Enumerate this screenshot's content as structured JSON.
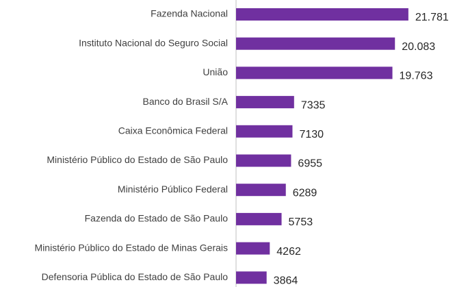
{
  "chart_data": {
    "type": "bar",
    "orientation": "horizontal",
    "categories": [
      "Fazenda Nacional",
      "Instituto Nacional do Seguro Social",
      "União",
      "Banco do Brasil S/A",
      "Caixa Econômica Federal",
      "Ministério Público do Estado de São Paulo",
      "Ministério Público Federal",
      "Fazenda do Estado de São Paulo",
      "Ministério Público do Estado de Minas Gerais",
      "Defensoria Pública do Estado de São Paulo"
    ],
    "values": [
      21781,
      20083,
      19763,
      7335,
      7130,
      6955,
      6289,
      5753,
      4262,
      3864
    ],
    "value_labels": [
      "21.781",
      "20.083",
      "19.763",
      "7335",
      "7130",
      "6955",
      "6289",
      "5753",
      "4262",
      "3864"
    ],
    "color": "#7030a0",
    "xlim": [
      0,
      27500
    ]
  }
}
